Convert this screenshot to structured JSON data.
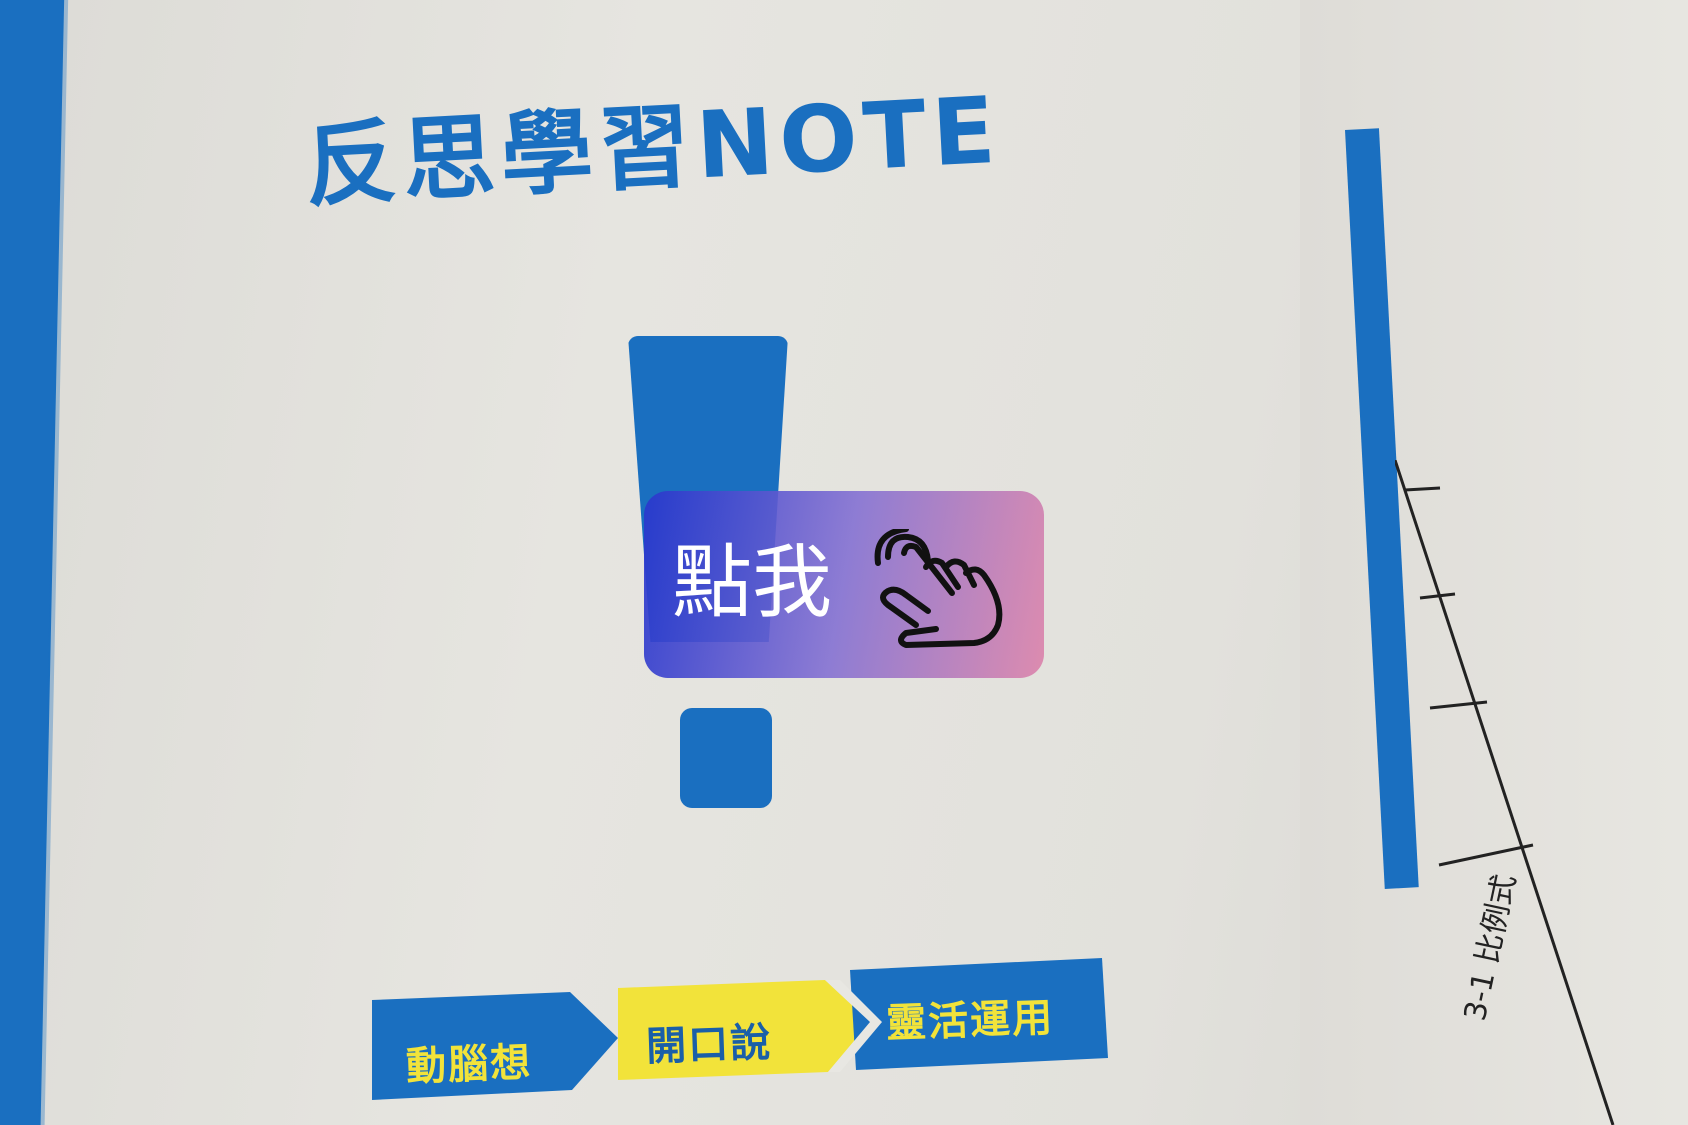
{
  "page": {
    "title": "反思學習NOTE"
  },
  "steps": [
    {
      "label": "動腦想"
    },
    {
      "label": "開口說"
    },
    {
      "label": "靈活運用"
    }
  ],
  "side_label": "3-1 比例式",
  "overlay_button": {
    "label": "點我",
    "icon": "pointing-hand-icon"
  },
  "colors": {
    "brand_blue": "#1a6fc0",
    "accent_yellow": "#f2e33a",
    "overlay_start": "#2837cd",
    "overlay_end": "#dc82aa"
  }
}
